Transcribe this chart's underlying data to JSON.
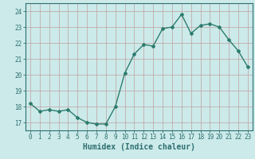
{
  "x": [
    0,
    1,
    2,
    3,
    4,
    5,
    6,
    7,
    8,
    9,
    10,
    11,
    12,
    13,
    14,
    15,
    16,
    17,
    18,
    19,
    20,
    21,
    22,
    23
  ],
  "y": [
    18.2,
    17.7,
    17.8,
    17.7,
    17.8,
    17.3,
    17.0,
    16.9,
    16.9,
    18.0,
    20.1,
    21.3,
    21.9,
    21.8,
    22.9,
    23.0,
    23.8,
    22.6,
    23.1,
    23.2,
    23.0,
    22.2,
    21.5,
    20.5
  ],
  "line_color": "#2d7c6e",
  "marker": "D",
  "markersize": 2,
  "linewidth": 1.0,
  "bg_color": "#cceaea",
  "grid_color": "#c0a0a0",
  "xlabel": "Humidex (Indice chaleur)",
  "ylim": [
    16.5,
    24.5
  ],
  "xlim": [
    -0.5,
    23.5
  ],
  "yticks": [
    17,
    18,
    19,
    20,
    21,
    22,
    23,
    24
  ],
  "xticks": [
    0,
    1,
    2,
    3,
    4,
    5,
    6,
    7,
    8,
    9,
    10,
    11,
    12,
    13,
    14,
    15,
    16,
    17,
    18,
    19,
    20,
    21,
    22,
    23
  ],
  "tick_color": "#2d6e6e",
  "tick_fontsize": 5.5,
  "xlabel_fontsize": 7
}
